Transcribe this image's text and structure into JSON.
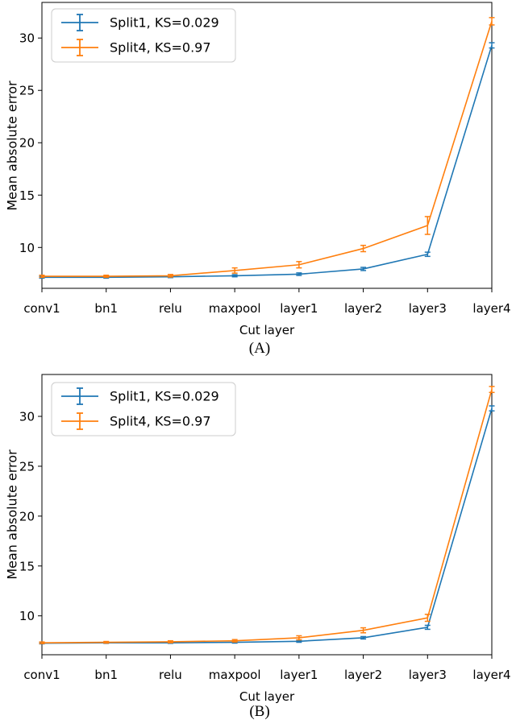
{
  "figure": {
    "background": "#ffffff",
    "axis_color": "#000000",
    "legend_border_color": "#cccccc"
  },
  "chart_data": [
    {
      "id": "A",
      "type": "line",
      "caption": "(A)",
      "xlabel": "Cut layer",
      "ylabel": "Mean absolute error",
      "categories": [
        "conv1",
        "bn1",
        "relu",
        "maxpool",
        "layer1",
        "layer2",
        "layer3",
        "layer4"
      ],
      "yticks": [
        10,
        15,
        20,
        25,
        30
      ],
      "ylim": [
        6.1,
        33.4
      ],
      "grid": false,
      "legend_position": "upper-left",
      "series": [
        {
          "name": "Split1, KS=0.029",
          "color": "#1f77b4",
          "values": [
            7.15,
            7.15,
            7.2,
            7.3,
            7.45,
            7.95,
            9.35,
            29.3
          ],
          "errors": [
            0.08,
            0.08,
            0.08,
            0.1,
            0.12,
            0.15,
            0.2,
            0.25
          ]
        },
        {
          "name": "Split4, KS=0.97",
          "color": "#ff7f0e",
          "values": [
            7.25,
            7.25,
            7.3,
            7.8,
            8.35,
            9.9,
            12.1,
            31.6
          ],
          "errors": [
            0.1,
            0.1,
            0.12,
            0.25,
            0.3,
            0.3,
            0.85,
            0.35
          ]
        }
      ]
    },
    {
      "id": "B",
      "type": "line",
      "caption": "(B)",
      "xlabel": "Cut layer",
      "ylabel": "Mean absolute error",
      "categories": [
        "conv1",
        "bn1",
        "relu",
        "maxpool",
        "layer1",
        "layer2",
        "layer3",
        "layer4"
      ],
      "yticks": [
        10,
        15,
        20,
        25,
        30
      ],
      "ylim": [
        6.1,
        34.2
      ],
      "grid": false,
      "legend_position": "upper-left",
      "series": [
        {
          "name": "Split1, KS=0.029",
          "color": "#1f77b4",
          "values": [
            7.25,
            7.3,
            7.3,
            7.35,
            7.45,
            7.8,
            8.85,
            30.8
          ],
          "errors": [
            0.06,
            0.06,
            0.06,
            0.08,
            0.1,
            0.12,
            0.2,
            0.25
          ]
        },
        {
          "name": "Split4, KS=0.97",
          "color": "#ff7f0e",
          "values": [
            7.3,
            7.35,
            7.4,
            7.5,
            7.8,
            8.55,
            9.8,
            32.7
          ],
          "errors": [
            0.08,
            0.08,
            0.1,
            0.12,
            0.2,
            0.25,
            0.35,
            0.3
          ]
        }
      ]
    }
  ]
}
